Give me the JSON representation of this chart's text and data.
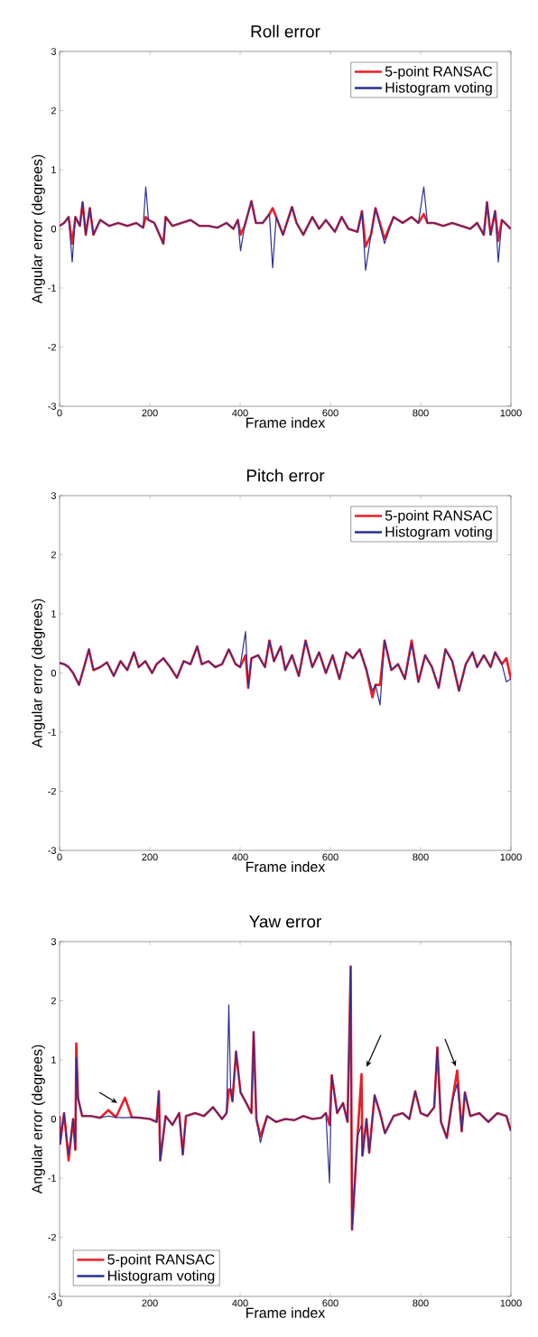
{
  "chart_data": [
    {
      "type": "line",
      "title": "Roll error",
      "xlabel": "Frame index",
      "ylabel": "Angular error (degrees)",
      "xlim": [
        0,
        1000
      ],
      "ylim": [
        -3,
        3
      ],
      "xticks": [
        0,
        200,
        400,
        600,
        800,
        1000
      ],
      "yticks": [
        -3,
        -2,
        -1,
        0,
        1,
        2,
        3
      ],
      "legend": "top right",
      "x": [
        0,
        10,
        20,
        28,
        35,
        45,
        51,
        58,
        67,
        75,
        90,
        110,
        130,
        150,
        170,
        185,
        191,
        197,
        210,
        230,
        235,
        250,
        270,
        290,
        310,
        330,
        350,
        370,
        385,
        395,
        401,
        410,
        425,
        435,
        450,
        465,
        472,
        480,
        495,
        515,
        525,
        540,
        560,
        575,
        590,
        610,
        625,
        640,
        660,
        670,
        678,
        690,
        700,
        720,
        740,
        760,
        780,
        795,
        807,
        815,
        830,
        850,
        870,
        890,
        910,
        925,
        940,
        947,
        955,
        965,
        972,
        980,
        1000
      ],
      "series": [
        {
          "name": "5-point RANSAC",
          "color": "#ed1c24",
          "values": [
            0.05,
            0.1,
            0.2,
            -0.25,
            0.2,
            0.05,
            0.45,
            -0.1,
            0.35,
            -0.1,
            0.15,
            0.05,
            0.1,
            0.05,
            0.1,
            0.02,
            0.2,
            0.15,
            0.1,
            -0.25,
            0.2,
            0.05,
            0.1,
            0.15,
            0.05,
            0.05,
            0.02,
            0.1,
            0.0,
            0.15,
            -0.1,
            0.05,
            0.47,
            0.1,
            0.1,
            0.25,
            0.35,
            0.2,
            -0.1,
            0.37,
            0.1,
            -0.1,
            0.2,
            0.0,
            0.15,
            -0.05,
            0.2,
            0.0,
            -0.05,
            0.3,
            -0.3,
            -0.1,
            0.35,
            -0.17,
            0.2,
            0.1,
            0.2,
            0.1,
            0.25,
            0.1,
            0.1,
            0.05,
            0.1,
            0.05,
            0.0,
            0.1,
            -0.1,
            0.45,
            -0.1,
            0.3,
            -0.2,
            0.15,
            0.0
          ]
        },
        {
          "name": "Histogram voting",
          "color": "#2b2f94",
          "values": [
            0.05,
            0.1,
            0.2,
            -0.56,
            0.2,
            0.05,
            0.45,
            -0.1,
            0.35,
            -0.1,
            0.15,
            0.05,
            0.1,
            0.05,
            0.1,
            0.02,
            0.71,
            0.15,
            0.1,
            -0.25,
            0.2,
            0.05,
            0.1,
            0.15,
            0.05,
            0.05,
            0.02,
            0.1,
            0.0,
            0.15,
            -0.37,
            0.05,
            0.47,
            0.1,
            0.1,
            0.25,
            -0.66,
            0.2,
            -0.1,
            0.37,
            0.1,
            -0.1,
            0.2,
            0.0,
            0.15,
            -0.05,
            0.2,
            0.0,
            -0.05,
            0.3,
            -0.7,
            -0.1,
            0.35,
            -0.25,
            0.2,
            0.1,
            0.2,
            0.1,
            0.71,
            0.1,
            0.1,
            0.05,
            0.1,
            0.05,
            0.0,
            0.1,
            -0.1,
            0.45,
            -0.1,
            0.3,
            -0.56,
            0.15,
            0.0
          ]
        }
      ]
    },
    {
      "type": "line",
      "title": "Pitch error",
      "xlabel": "Frame index",
      "ylabel": "Angular error (degrees)",
      "xlim": [
        0,
        1000
      ],
      "ylim": [
        -3,
        3
      ],
      "xticks": [
        0,
        200,
        400,
        600,
        800,
        1000
      ],
      "yticks": [
        -3,
        -2,
        -1,
        0,
        1,
        2,
        3
      ],
      "legend": "top right",
      "x": [
        0,
        10,
        20,
        30,
        43,
        55,
        65,
        75,
        90,
        105,
        120,
        135,
        150,
        165,
        175,
        190,
        205,
        215,
        230,
        245,
        260,
        275,
        290,
        305,
        315,
        330,
        345,
        360,
        375,
        390,
        400,
        412,
        418,
        425,
        440,
        455,
        465,
        475,
        490,
        500,
        515,
        530,
        545,
        560,
        575,
        590,
        605,
        620,
        635,
        650,
        665,
        680,
        693,
        700,
        710,
        720,
        735,
        750,
        765,
        780,
        795,
        810,
        825,
        840,
        855,
        870,
        885,
        900,
        915,
        925,
        940,
        955,
        965,
        980,
        990,
        1000
      ],
      "series": [
        {
          "name": "5-point RANSAC",
          "color": "#ed1c24",
          "values": [
            0.17,
            0.15,
            0.1,
            0.0,
            -0.2,
            0.12,
            0.4,
            0.05,
            0.1,
            0.18,
            -0.05,
            0.2,
            0.05,
            0.35,
            0.1,
            0.2,
            0.0,
            0.15,
            0.25,
            0.1,
            -0.08,
            0.2,
            0.15,
            0.45,
            0.15,
            0.2,
            0.1,
            0.15,
            0.4,
            0.15,
            0.1,
            0.3,
            -0.25,
            0.25,
            0.3,
            0.1,
            0.55,
            0.2,
            0.45,
            0.05,
            0.3,
            -0.05,
            0.55,
            0.1,
            0.35,
            0.0,
            0.3,
            -0.1,
            0.35,
            0.25,
            0.4,
            0.05,
            -0.41,
            -0.2,
            -0.2,
            0.55,
            0.05,
            0.15,
            -0.1,
            0.55,
            -0.15,
            0.3,
            0.1,
            -0.25,
            0.4,
            0.2,
            -0.3,
            0.15,
            0.35,
            0.1,
            0.3,
            0.1,
            0.35,
            0.15,
            0.25,
            -0.1
          ]
        },
        {
          "name": "Histogram voting",
          "color": "#2b2f94",
          "values": [
            0.17,
            0.15,
            0.1,
            0.0,
            -0.2,
            0.12,
            0.4,
            0.05,
            0.1,
            0.18,
            -0.05,
            0.2,
            0.05,
            0.35,
            0.1,
            0.2,
            0.0,
            0.15,
            0.25,
            0.1,
            -0.08,
            0.2,
            0.15,
            0.45,
            0.15,
            0.2,
            0.1,
            0.15,
            0.4,
            0.15,
            0.1,
            0.7,
            -0.25,
            0.25,
            0.3,
            0.1,
            0.55,
            0.2,
            0.45,
            0.05,
            0.3,
            -0.05,
            0.55,
            0.1,
            0.35,
            0.0,
            0.3,
            -0.1,
            0.35,
            0.25,
            0.4,
            0.05,
            -0.3,
            -0.2,
            -0.54,
            0.55,
            0.05,
            0.15,
            -0.1,
            0.5,
            -0.15,
            0.3,
            0.1,
            -0.25,
            0.4,
            0.2,
            -0.3,
            0.15,
            0.35,
            0.1,
            0.3,
            0.1,
            0.35,
            0.15,
            -0.15,
            -0.1
          ]
        }
      ]
    },
    {
      "type": "line",
      "title": "Yaw error",
      "xlabel": "Frame index",
      "ylabel": "Angular error (degrees)",
      "xlim": [
        0,
        1000
      ],
      "ylim": [
        -3,
        3
      ],
      "xticks": [
        0,
        200,
        400,
        600,
        800,
        1000
      ],
      "yticks": [
        -3,
        -2,
        -1,
        0,
        1,
        2,
        3
      ],
      "legend": "bottom left",
      "x": [
        0,
        1,
        10,
        20,
        30,
        35,
        37,
        41,
        50,
        70,
        90,
        108,
        125,
        145,
        160,
        180,
        200,
        215,
        220,
        223,
        235,
        250,
        265,
        273,
        280,
        300,
        320,
        340,
        360,
        370,
        375,
        379,
        383,
        391,
        401,
        415,
        425,
        430,
        436,
        445,
        460,
        480,
        500,
        520,
        540,
        560,
        580,
        590,
        598,
        603,
        615,
        628,
        638,
        645,
        648,
        660,
        669,
        671,
        680,
        686,
        698,
        710,
        721,
        740,
        760,
        775,
        788,
        800,
        815,
        830,
        837,
        845,
        858,
        870,
        881,
        891,
        898,
        910,
        930,
        950,
        970,
        990,
        1000
      ],
      "series": [
        {
          "name": "5-point RANSAC",
          "color": "#ed1c24",
          "values": [
            0.05,
            -0.42,
            0.1,
            -0.7,
            0.0,
            -0.52,
            1.28,
            0.35,
            0.05,
            0.05,
            0.02,
            0.15,
            0.03,
            0.36,
            0.03,
            0.02,
            0.0,
            -0.05,
            0.47,
            -0.7,
            0.05,
            -0.1,
            0.1,
            -0.6,
            0.05,
            0.1,
            0.05,
            0.2,
            0.0,
            0.1,
            0.5,
            0.5,
            0.3,
            1.14,
            0.45,
            0.25,
            0.1,
            1.47,
            0.0,
            -0.3,
            0.05,
            -0.05,
            0.0,
            -0.02,
            0.05,
            0.0,
            0.02,
            0.1,
            -0.1,
            0.74,
            0.1,
            0.27,
            -0.05,
            2.58,
            -1.87,
            -0.3,
            0.76,
            -0.62,
            0.0,
            -0.57,
            0.4,
            0.1,
            -0.24,
            0.05,
            0.1,
            0.0,
            0.47,
            0.1,
            0.05,
            0.2,
            1.21,
            -0.05,
            -0.32,
            0.3,
            0.82,
            -0.21,
            0.45,
            0.05,
            0.1,
            -0.05,
            0.1,
            0.05,
            -0.2
          ]
        },
        {
          "name": "Histogram voting",
          "color": "#2b2f94",
          "values": [
            0.05,
            -0.42,
            0.1,
            -0.6,
            0.0,
            -0.52,
            1.04,
            0.35,
            0.05,
            0.05,
            0.02,
            0.05,
            0.03,
            0.02,
            0.03,
            0.02,
            0.0,
            -0.05,
            0.47,
            -0.7,
            0.05,
            -0.1,
            0.1,
            -0.6,
            0.05,
            0.1,
            0.05,
            0.2,
            0.0,
            0.1,
            1.93,
            0.5,
            0.3,
            1.14,
            0.45,
            0.25,
            0.1,
            1.47,
            0.0,
            -0.4,
            0.05,
            -0.05,
            0.0,
            -0.02,
            0.05,
            0.0,
            0.02,
            0.1,
            -1.08,
            0.74,
            0.1,
            0.27,
            -0.05,
            2.58,
            -1.87,
            -0.3,
            -0.1,
            -0.62,
            0.0,
            -0.57,
            0.4,
            0.1,
            -0.24,
            0.05,
            0.1,
            0.0,
            0.47,
            0.1,
            0.05,
            0.2,
            1.21,
            -0.05,
            -0.32,
            0.3,
            0.6,
            -0.21,
            0.45,
            0.05,
            0.1,
            -0.05,
            0.1,
            0.05,
            -0.2
          ]
        }
      ]
    }
  ]
}
